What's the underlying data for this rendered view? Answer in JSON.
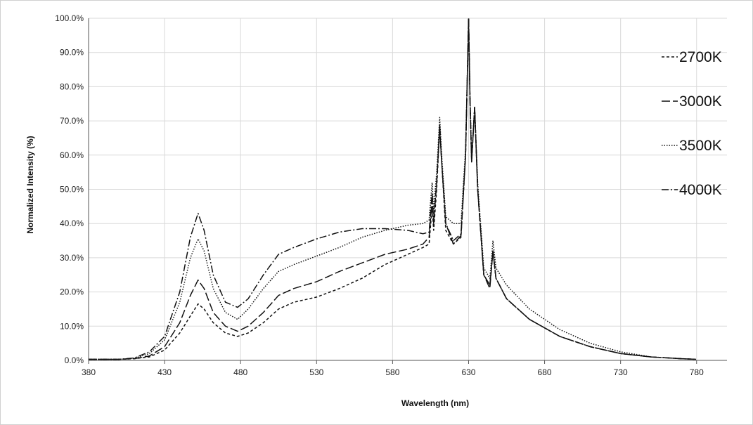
{
  "chart_data": {
    "type": "line",
    "title": "",
    "xlabel": "Wavelength (nm)",
    "ylabel": "Normalized Intensity (%)",
    "xlim": [
      380,
      800
    ],
    "ylim": [
      0,
      100
    ],
    "x_ticks": [
      380,
      430,
      480,
      530,
      580,
      630,
      680,
      730,
      780
    ],
    "y_ticks": [
      0,
      10,
      20,
      30,
      40,
      50,
      60,
      70,
      80,
      90,
      100
    ],
    "x_tick_labels": [
      "380",
      "430",
      "480",
      "530",
      "580",
      "630",
      "680",
      "730",
      "780"
    ],
    "y_tick_labels": [
      "0.0%",
      "10.0%",
      "20.0%",
      "30.0%",
      "40.0%",
      "50.0%",
      "60.0%",
      "70.0%",
      "80.0%",
      "90.0%",
      "100.0%"
    ],
    "grid": true,
    "legend_position": "right",
    "series": [
      {
        "name": "2700K",
        "dash": "4,3",
        "points": [
          [
            380,
            0.3
          ],
          [
            400,
            0.3
          ],
          [
            410,
            0.5
          ],
          [
            420,
            1
          ],
          [
            430,
            3
          ],
          [
            440,
            8
          ],
          [
            447,
            13
          ],
          [
            452,
            16.5
          ],
          [
            456,
            15
          ],
          [
            462,
            11
          ],
          [
            470,
            8
          ],
          [
            478,
            7
          ],
          [
            485,
            8
          ],
          [
            495,
            11
          ],
          [
            505,
            15
          ],
          [
            515,
            17
          ],
          [
            530,
            18.5
          ],
          [
            545,
            21
          ],
          [
            560,
            24
          ],
          [
            575,
            28
          ],
          [
            590,
            31
          ],
          [
            600,
            33
          ],
          [
            604,
            34
          ],
          [
            606,
            45
          ],
          [
            607,
            38
          ],
          [
            609,
            50
          ],
          [
            611,
            68
          ],
          [
            612,
            60
          ],
          [
            615,
            38
          ],
          [
            620,
            34
          ],
          [
            625,
            36
          ],
          [
            628,
            60
          ],
          [
            630,
            100
          ],
          [
            631,
            75
          ],
          [
            632,
            58
          ],
          [
            634,
            74
          ],
          [
            636,
            50
          ],
          [
            640,
            25
          ],
          [
            644,
            22
          ],
          [
            646,
            32
          ],
          [
            648,
            24
          ],
          [
            655,
            18
          ],
          [
            670,
            12
          ],
          [
            690,
            7
          ],
          [
            710,
            4
          ],
          [
            730,
            2
          ],
          [
            750,
            1
          ],
          [
            770,
            0.5
          ],
          [
            780,
            0.3
          ]
        ]
      },
      {
        "name": "3000K",
        "dash": "12,4",
        "points": [
          [
            380,
            0.3
          ],
          [
            400,
            0.3
          ],
          [
            410,
            0.5
          ],
          [
            420,
            1.3
          ],
          [
            430,
            4
          ],
          [
            440,
            11
          ],
          [
            447,
            19
          ],
          [
            452,
            23.5
          ],
          [
            456,
            21
          ],
          [
            462,
            14
          ],
          [
            470,
            10
          ],
          [
            478,
            8.5
          ],
          [
            485,
            10
          ],
          [
            495,
            14
          ],
          [
            505,
            19
          ],
          [
            515,
            21
          ],
          [
            530,
            23
          ],
          [
            545,
            26
          ],
          [
            560,
            28.5
          ],
          [
            575,
            31
          ],
          [
            590,
            32.5
          ],
          [
            600,
            34
          ],
          [
            604,
            36
          ],
          [
            606,
            47
          ],
          [
            607,
            40
          ],
          [
            609,
            52
          ],
          [
            611,
            68
          ],
          [
            612,
            60
          ],
          [
            615,
            40
          ],
          [
            620,
            34
          ],
          [
            625,
            36.5
          ],
          [
            628,
            60
          ],
          [
            630,
            100
          ],
          [
            631,
            75
          ],
          [
            632,
            58
          ],
          [
            634,
            74
          ],
          [
            636,
            50
          ],
          [
            640,
            25
          ],
          [
            644,
            21
          ],
          [
            646,
            32
          ],
          [
            648,
            24
          ],
          [
            655,
            18
          ],
          [
            670,
            12
          ],
          [
            690,
            7
          ],
          [
            710,
            4
          ],
          [
            730,
            2
          ],
          [
            750,
            1
          ],
          [
            770,
            0.5
          ],
          [
            780,
            0.3
          ]
        ]
      },
      {
        "name": "3500K",
        "dash": "1.5,2",
        "points": [
          [
            380,
            0.3
          ],
          [
            400,
            0.3
          ],
          [
            410,
            0.6
          ],
          [
            420,
            2
          ],
          [
            430,
            6
          ],
          [
            440,
            17
          ],
          [
            447,
            30
          ],
          [
            452,
            35.5
          ],
          [
            456,
            32
          ],
          [
            462,
            21
          ],
          [
            470,
            14
          ],
          [
            478,
            12
          ],
          [
            485,
            15
          ],
          [
            495,
            21
          ],
          [
            505,
            26
          ],
          [
            515,
            28
          ],
          [
            530,
            30.5
          ],
          [
            545,
            33
          ],
          [
            560,
            36
          ],
          [
            575,
            38
          ],
          [
            590,
            39.5
          ],
          [
            600,
            40
          ],
          [
            604,
            41
          ],
          [
            606,
            52
          ],
          [
            607,
            44
          ],
          [
            609,
            55
          ],
          [
            611,
            71
          ],
          [
            612,
            62
          ],
          [
            615,
            42
          ],
          [
            620,
            40
          ],
          [
            625,
            40
          ],
          [
            628,
            62
          ],
          [
            630,
            100
          ],
          [
            631,
            76
          ],
          [
            632,
            60
          ],
          [
            634,
            74
          ],
          [
            636,
            52
          ],
          [
            640,
            27
          ],
          [
            644,
            24
          ],
          [
            646,
            35
          ],
          [
            648,
            27
          ],
          [
            655,
            22
          ],
          [
            670,
            15
          ],
          [
            690,
            9
          ],
          [
            710,
            5
          ],
          [
            730,
            2.5
          ],
          [
            750,
            1
          ],
          [
            770,
            0.5
          ],
          [
            780,
            0.3
          ]
        ]
      },
      {
        "name": "4000K",
        "dash": "10,3,2,3",
        "points": [
          [
            380,
            0.3
          ],
          [
            400,
            0.3
          ],
          [
            410,
            0.7
          ],
          [
            420,
            2.5
          ],
          [
            430,
            7
          ],
          [
            440,
            20
          ],
          [
            447,
            36
          ],
          [
            452,
            43
          ],
          [
            456,
            38
          ],
          [
            462,
            25
          ],
          [
            470,
            17
          ],
          [
            478,
            15.5
          ],
          [
            485,
            18
          ],
          [
            495,
            25
          ],
          [
            505,
            31
          ],
          [
            515,
            33
          ],
          [
            530,
            35.5
          ],
          [
            545,
            37.5
          ],
          [
            560,
            38.5
          ],
          [
            575,
            38.5
          ],
          [
            590,
            38
          ],
          [
            600,
            37
          ],
          [
            604,
            37.5
          ],
          [
            606,
            49
          ],
          [
            607,
            41
          ],
          [
            609,
            52
          ],
          [
            611,
            69
          ],
          [
            612,
            60
          ],
          [
            615,
            40
          ],
          [
            620,
            35
          ],
          [
            625,
            37
          ],
          [
            628,
            60
          ],
          [
            630,
            100
          ],
          [
            631,
            75
          ],
          [
            632,
            58
          ],
          [
            634,
            74
          ],
          [
            636,
            50
          ],
          [
            640,
            25
          ],
          [
            644,
            22
          ],
          [
            646,
            32
          ],
          [
            648,
            24
          ],
          [
            655,
            18
          ],
          [
            670,
            12
          ],
          [
            690,
            7
          ],
          [
            710,
            4
          ],
          [
            730,
            2
          ],
          [
            750,
            1
          ],
          [
            770,
            0.5
          ],
          [
            780,
            0.3
          ]
        ]
      }
    ]
  }
}
